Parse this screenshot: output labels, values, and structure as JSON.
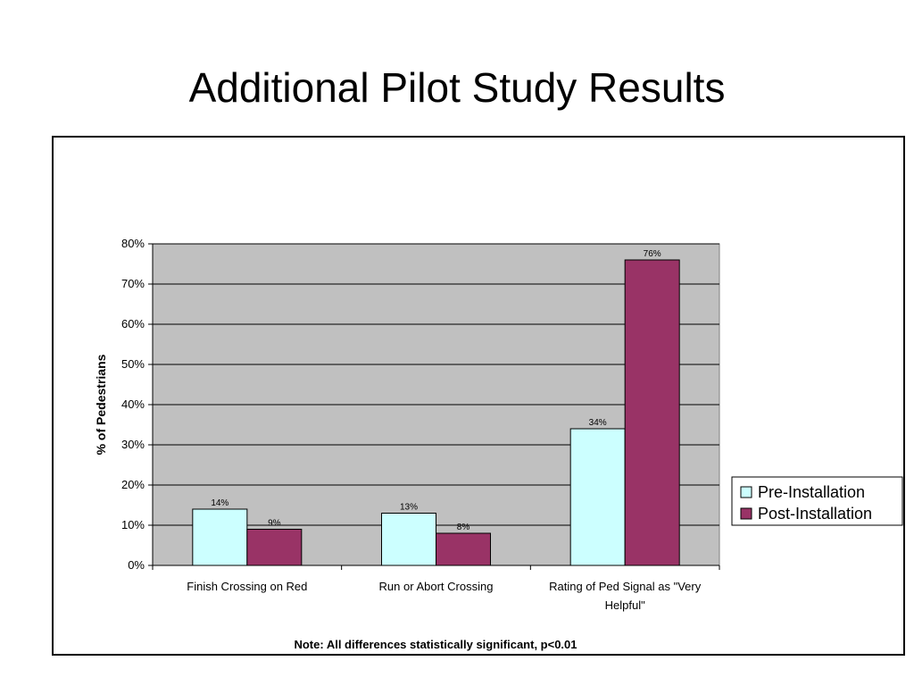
{
  "slide": {
    "title": "Additional Pilot Study Results"
  },
  "chart_data": {
    "type": "bar",
    "categories": [
      "Finish Crossing on Red",
      "Run or Abort Crossing",
      "Rating of Ped Signal as \"Very Helpful\""
    ],
    "category_lines": [
      [
        "Finish Crossing on Red"
      ],
      [
        "Run or Abort Crossing"
      ],
      [
        "Rating of Ped Signal as \"Very",
        "Helpful\""
      ]
    ],
    "series": [
      {
        "name": "Pre-Installation",
        "values": [
          14,
          13,
          34
        ],
        "labels": [
          "14%",
          "13%",
          "34%"
        ],
        "color": "#ccffff"
      },
      {
        "name": "Post-Installation",
        "values": [
          9,
          8,
          76
        ],
        "labels": [
          "9%",
          "8%",
          "76%"
        ],
        "color": "#993366"
      }
    ],
    "title": "",
    "xlabel": "",
    "ylabel": "% of Pedestrians",
    "ylim": [
      0,
      80
    ],
    "ytick_step": 10,
    "ytick_labels": [
      "0%",
      "10%",
      "20%",
      "30%",
      "40%",
      "50%",
      "60%",
      "70%",
      "80%"
    ],
    "grid": true,
    "plot_background": "#c0c0c0",
    "legend_position": "right",
    "note": "Note: All differences statistically significant, p<0.01"
  }
}
